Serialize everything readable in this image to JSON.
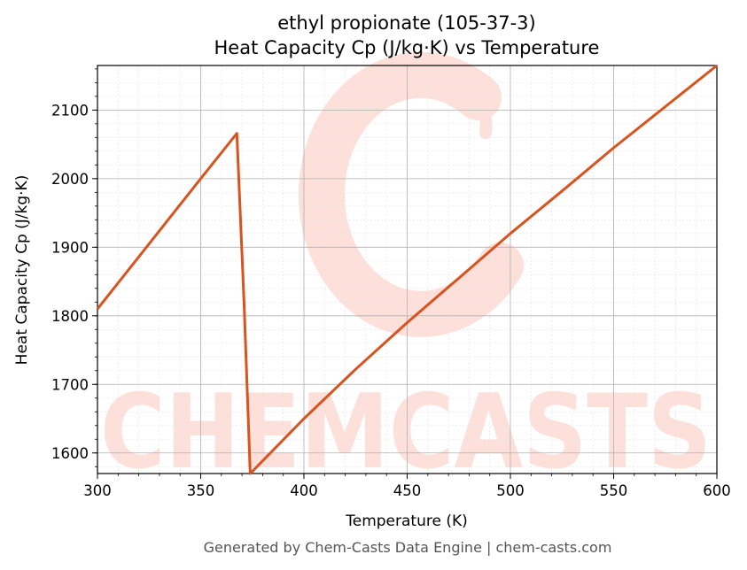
{
  "colors": {
    "series": "#d9531e",
    "watermark": "#fde0da",
    "grid_major": "#b0b0b0",
    "grid_minor": "#e4e4e4"
  },
  "watermark": {
    "text": "CHEMCASTS"
  },
  "footer": "Generated by Chem-Casts Data Engine | chem-casts.com",
  "chart_data": {
    "type": "line",
    "title": "ethyl propionate (105-37-3)",
    "subtitle": "Heat Capacity Cp (J/kg·K) vs Temperature",
    "xlabel": "Temperature (K)",
    "ylabel": "Heat Capacity Cp (J/kg·K)",
    "xlim": [
      300,
      600
    ],
    "ylim": [
      1570,
      2165
    ],
    "grid": true,
    "x_ticks": [
      300,
      350,
      400,
      450,
      500,
      550,
      600
    ],
    "y_ticks": [
      1600,
      1700,
      1800,
      1900,
      2000,
      2100
    ],
    "series": [
      {
        "x": [
          300,
          325,
          350,
          367.5,
          371,
          374,
          400,
          425,
          450,
          475,
          500,
          525,
          550,
          575,
          600
        ],
        "y": [
          1810,
          1905,
          2000,
          2066,
          1820,
          1570,
          1650,
          1722,
          1790,
          1855,
          1920,
          1982,
          2045,
          2105,
          2165
        ]
      }
    ]
  }
}
